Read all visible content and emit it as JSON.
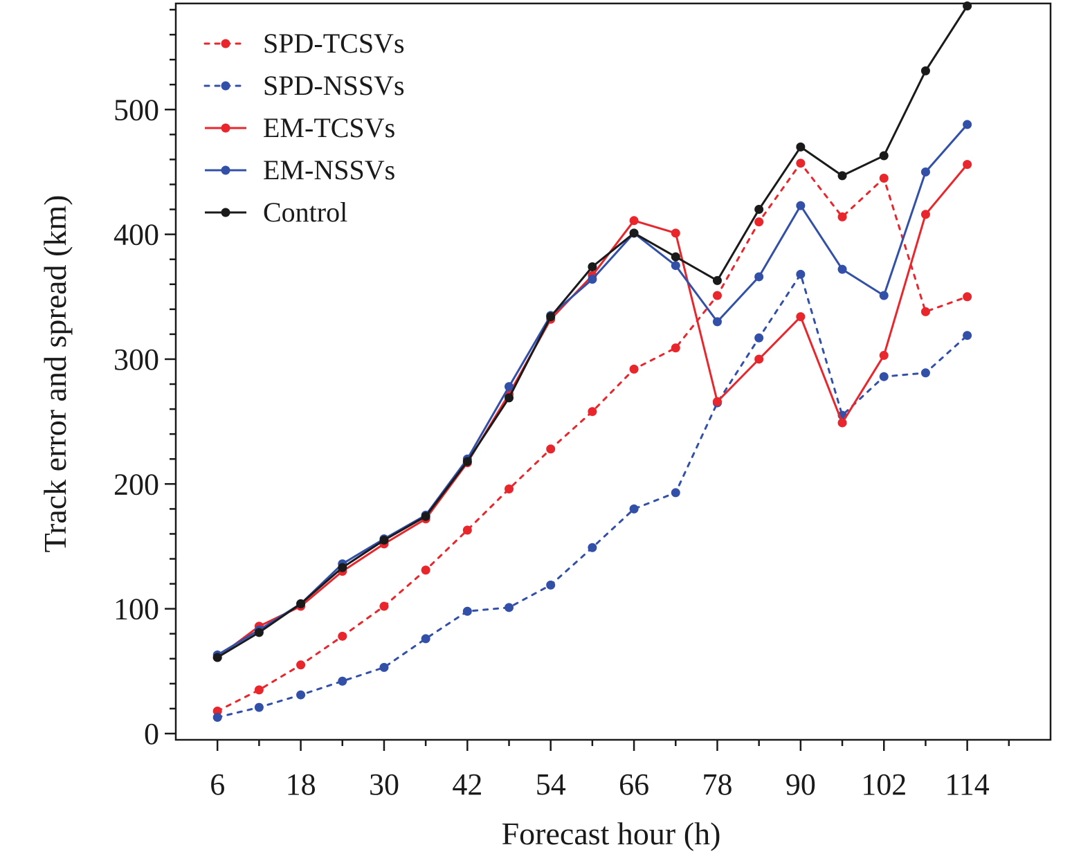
{
  "chart_data": {
    "type": "line",
    "title": "",
    "xlabel": "Forecast hour (h)",
    "ylabel": "Track error and spread (km)",
    "x": [
      6,
      12,
      18,
      24,
      30,
      36,
      42,
      48,
      54,
      60,
      66,
      72,
      78,
      84,
      90,
      96,
      102,
      108,
      114
    ],
    "xticks": [
      6,
      18,
      30,
      42,
      54,
      66,
      78,
      90,
      102,
      114
    ],
    "xlim": [
      0,
      126
    ],
    "yticks": [
      0,
      100,
      200,
      300,
      400,
      500
    ],
    "ylim": [
      -5,
      585
    ],
    "grid": false,
    "legend_position": "top-left",
    "series": [
      {
        "name": "SPD-TCSVs",
        "style": "dotted",
        "color": "#e8262c",
        "values": [
          18,
          35,
          55,
          78,
          102,
          131,
          163,
          196,
          228,
          258,
          292,
          309,
          351,
          410,
          457,
          414,
          445,
          338,
          350
        ]
      },
      {
        "name": "SPD-NSSVs",
        "style": "dotted",
        "color": "#3350a8",
        "values": [
          13,
          21,
          31,
          42,
          53,
          76,
          98,
          101,
          119,
          149,
          180,
          193,
          265,
          317,
          368,
          255,
          286,
          289,
          319
        ]
      },
      {
        "name": "EM-TCSVs",
        "style": "solid",
        "color": "#e8262c",
        "values": [
          61,
          86,
          102,
          130,
          152,
          172,
          217,
          272,
          332,
          367,
          411,
          401,
          266,
          300,
          334,
          249,
          303,
          416,
          456
        ]
      },
      {
        "name": "EM-NSSVs",
        "style": "solid",
        "color": "#3350a8",
        "values": [
          63,
          83,
          104,
          136,
          156,
          175,
          220,
          278,
          335,
          364,
          401,
          375,
          330,
          366,
          423,
          372,
          351,
          450,
          488
        ]
      },
      {
        "name": "Control",
        "style": "solid",
        "color": "#1a1a1a",
        "values": [
          61,
          81,
          104,
          133,
          155,
          174,
          218,
          269,
          334,
          374,
          401,
          382,
          363,
          420,
          470,
          447,
          463,
          531,
          583
        ]
      }
    ]
  }
}
